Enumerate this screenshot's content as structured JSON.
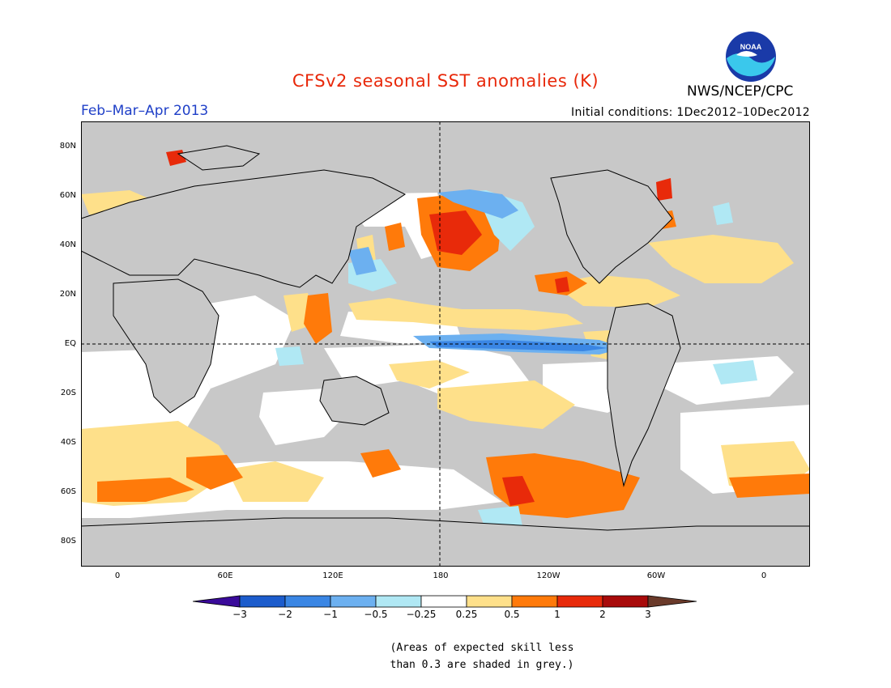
{
  "header": {
    "title": "CFSv2 seasonal SST anomalies (K)",
    "season": "Feb–Mar–Apr 2013",
    "initial_conditions": "Initial conditions: 1Dec2012–10Dec2012",
    "agency": "NWS/NCEP/CPC",
    "logo_text": "NOAA",
    "title_color": "#e8280a",
    "season_color": "#2040c8"
  },
  "map": {
    "lat_labels": [
      "80N",
      "60N",
      "40N",
      "20N",
      "EQ",
      "20S",
      "40S",
      "60S",
      "80S"
    ],
    "lon_labels": [
      "0",
      "60E",
      "120E",
      "180",
      "120W",
      "60W",
      "0"
    ],
    "land_color": "#c8c8c8",
    "ocean_neutral_color": "#ffffff",
    "skill_mask_color": "#c8c8c8"
  },
  "colorbar": {
    "labels": [
      "−3",
      "−2",
      "−1",
      "−0.5",
      "−0.25",
      "0.25",
      "0.5",
      "1",
      "2",
      "3"
    ],
    "colors": [
      "#3a0a9a",
      "#1c5ccc",
      "#3a86e4",
      "#6cb0f0",
      "#b0e8f4",
      "#ffffff",
      "#fee08a",
      "#ff7a0a",
      "#e82a0a",
      "#a80a0a",
      "#6a3a2a"
    ]
  },
  "footnote": {
    "line1": "(Areas of expected skill less",
    "line2": "than 0.3 are shaded in grey.)"
  }
}
